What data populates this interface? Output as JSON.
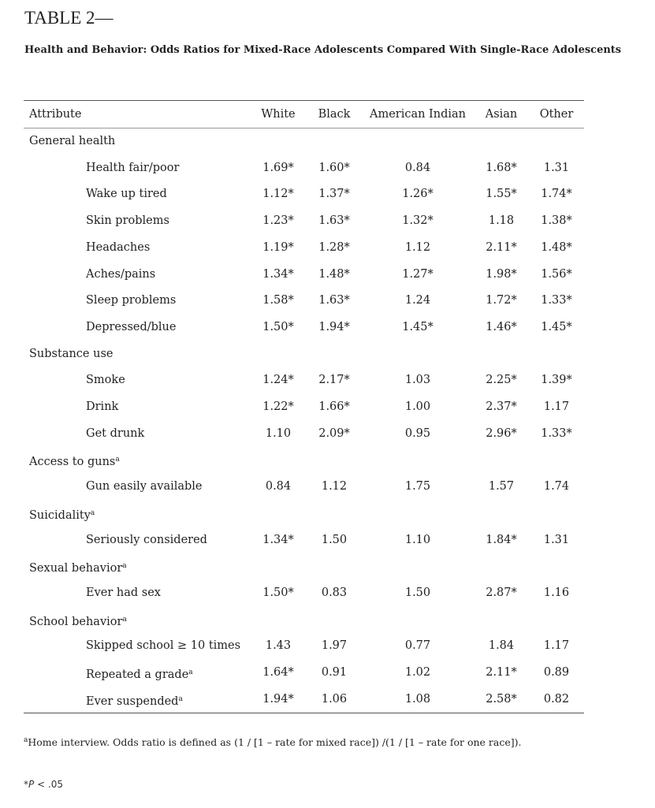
{
  "header": {
    "title": "TABLE 2—",
    "subtitle": "Health and Behavior: Odds Ratios for Mixed-Race Adolescents Compared With Single-Race Adolescents"
  },
  "table": {
    "columns": [
      "Attribute",
      "White",
      "Black",
      "American Indian",
      "Asian",
      "Other"
    ],
    "sections": [
      {
        "label": "General health",
        "rows": [
          {
            "label": "Health fair/poor",
            "values": [
              "1.69*",
              "1.60*",
              "0.84",
              "1.68*",
              "1.31"
            ]
          },
          {
            "label": "Wake up tired",
            "values": [
              "1.12*",
              "1.37*",
              "1.26*",
              "1.55*",
              "1.74*"
            ]
          },
          {
            "label": "Skin problems",
            "values": [
              "1.23*",
              "1.63*",
              "1.32*",
              "1.18",
              "1.38*"
            ]
          },
          {
            "label": "Headaches",
            "values": [
              "1.19*",
              "1.28*",
              "1.12",
              "2.11*",
              "1.48*"
            ]
          },
          {
            "label": "Aches/pains",
            "values": [
              "1.34*",
              "1.48*",
              "1.27*",
              "1.98*",
              "1.56*"
            ]
          },
          {
            "label": "Sleep problems",
            "values": [
              "1.58*",
              "1.63*",
              "1.24",
              "1.72*",
              "1.33*"
            ]
          },
          {
            "label": "Depressed/blue",
            "values": [
              "1.50*",
              "1.94*",
              "1.45*",
              "1.46*",
              "1.45*"
            ]
          }
        ]
      },
      {
        "label": "Substance use",
        "rows": [
          {
            "label": "Smoke",
            "values": [
              "1.24*",
              "2.17*",
              "1.03",
              "2.25*",
              "1.39*"
            ]
          },
          {
            "label": "Drink",
            "values": [
              "1.22*",
              "1.66*",
              "1.00",
              "2.37*",
              "1.17"
            ]
          },
          {
            "label": "Get drunk",
            "values": [
              "1.10",
              "2.09*",
              "0.95",
              "2.96*",
              "1.33*"
            ]
          }
        ]
      },
      {
        "label": "Access to guns",
        "note": "a",
        "rows": [
          {
            "label": "Gun easily available",
            "values": [
              "0.84",
              "1.12",
              "1.75",
              "1.57",
              "1.74"
            ]
          }
        ]
      },
      {
        "label": "Suicidality",
        "note": "a",
        "rows": [
          {
            "label": "Seriously considered",
            "values": [
              "1.34*",
              "1.50",
              "1.10",
              "1.84*",
              "1.31"
            ]
          }
        ]
      },
      {
        "label": "Sexual behavior",
        "note": "a",
        "rows": [
          {
            "label": "Ever had sex",
            "values": [
              "1.50*",
              "0.83",
              "1.50",
              "2.87*",
              "1.16"
            ]
          }
        ]
      },
      {
        "label": "School behavior",
        "note": "a",
        "rows": [
          {
            "label": "Skipped school ≥ 10 times",
            "values": [
              "1.43",
              "1.97",
              "0.77",
              "1.84",
              "1.17"
            ]
          },
          {
            "label": "Repeated a grade",
            "note": "a",
            "values": [
              "1.64*",
              "0.91",
              "1.02",
              "2.11*",
              "0.89"
            ]
          },
          {
            "label": "Ever suspended",
            "note": "a",
            "values": [
              "1.94*",
              "1.06",
              "1.08",
              "2.58*",
              "0.82"
            ]
          }
        ]
      }
    ]
  },
  "footnotes": {
    "note_a": {
      "marker": "a",
      "text": "Home interview. Odds ratio is defined as (1 / [1 – rate for mixed race]) /(1 / [1 – rate for one race])."
    },
    "significance": {
      "marker": "*",
      "italic": "P",
      "text": " < .05"
    }
  }
}
